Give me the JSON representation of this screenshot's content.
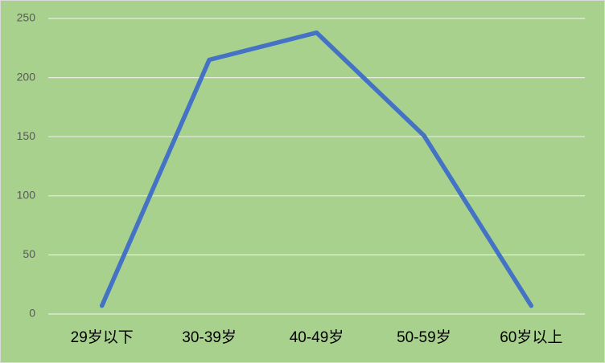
{
  "chart_data": {
    "type": "line",
    "categories": [
      "29岁以下",
      "30-39岁",
      "40-49岁",
      "50-59岁",
      "60岁以上"
    ],
    "values": [
      7,
      215,
      238,
      151,
      7
    ],
    "color": "#4472c4",
    "ylim": [
      0,
      250
    ],
    "yticks": [
      0,
      50,
      100,
      150,
      200,
      250
    ],
    "grid": true
  }
}
